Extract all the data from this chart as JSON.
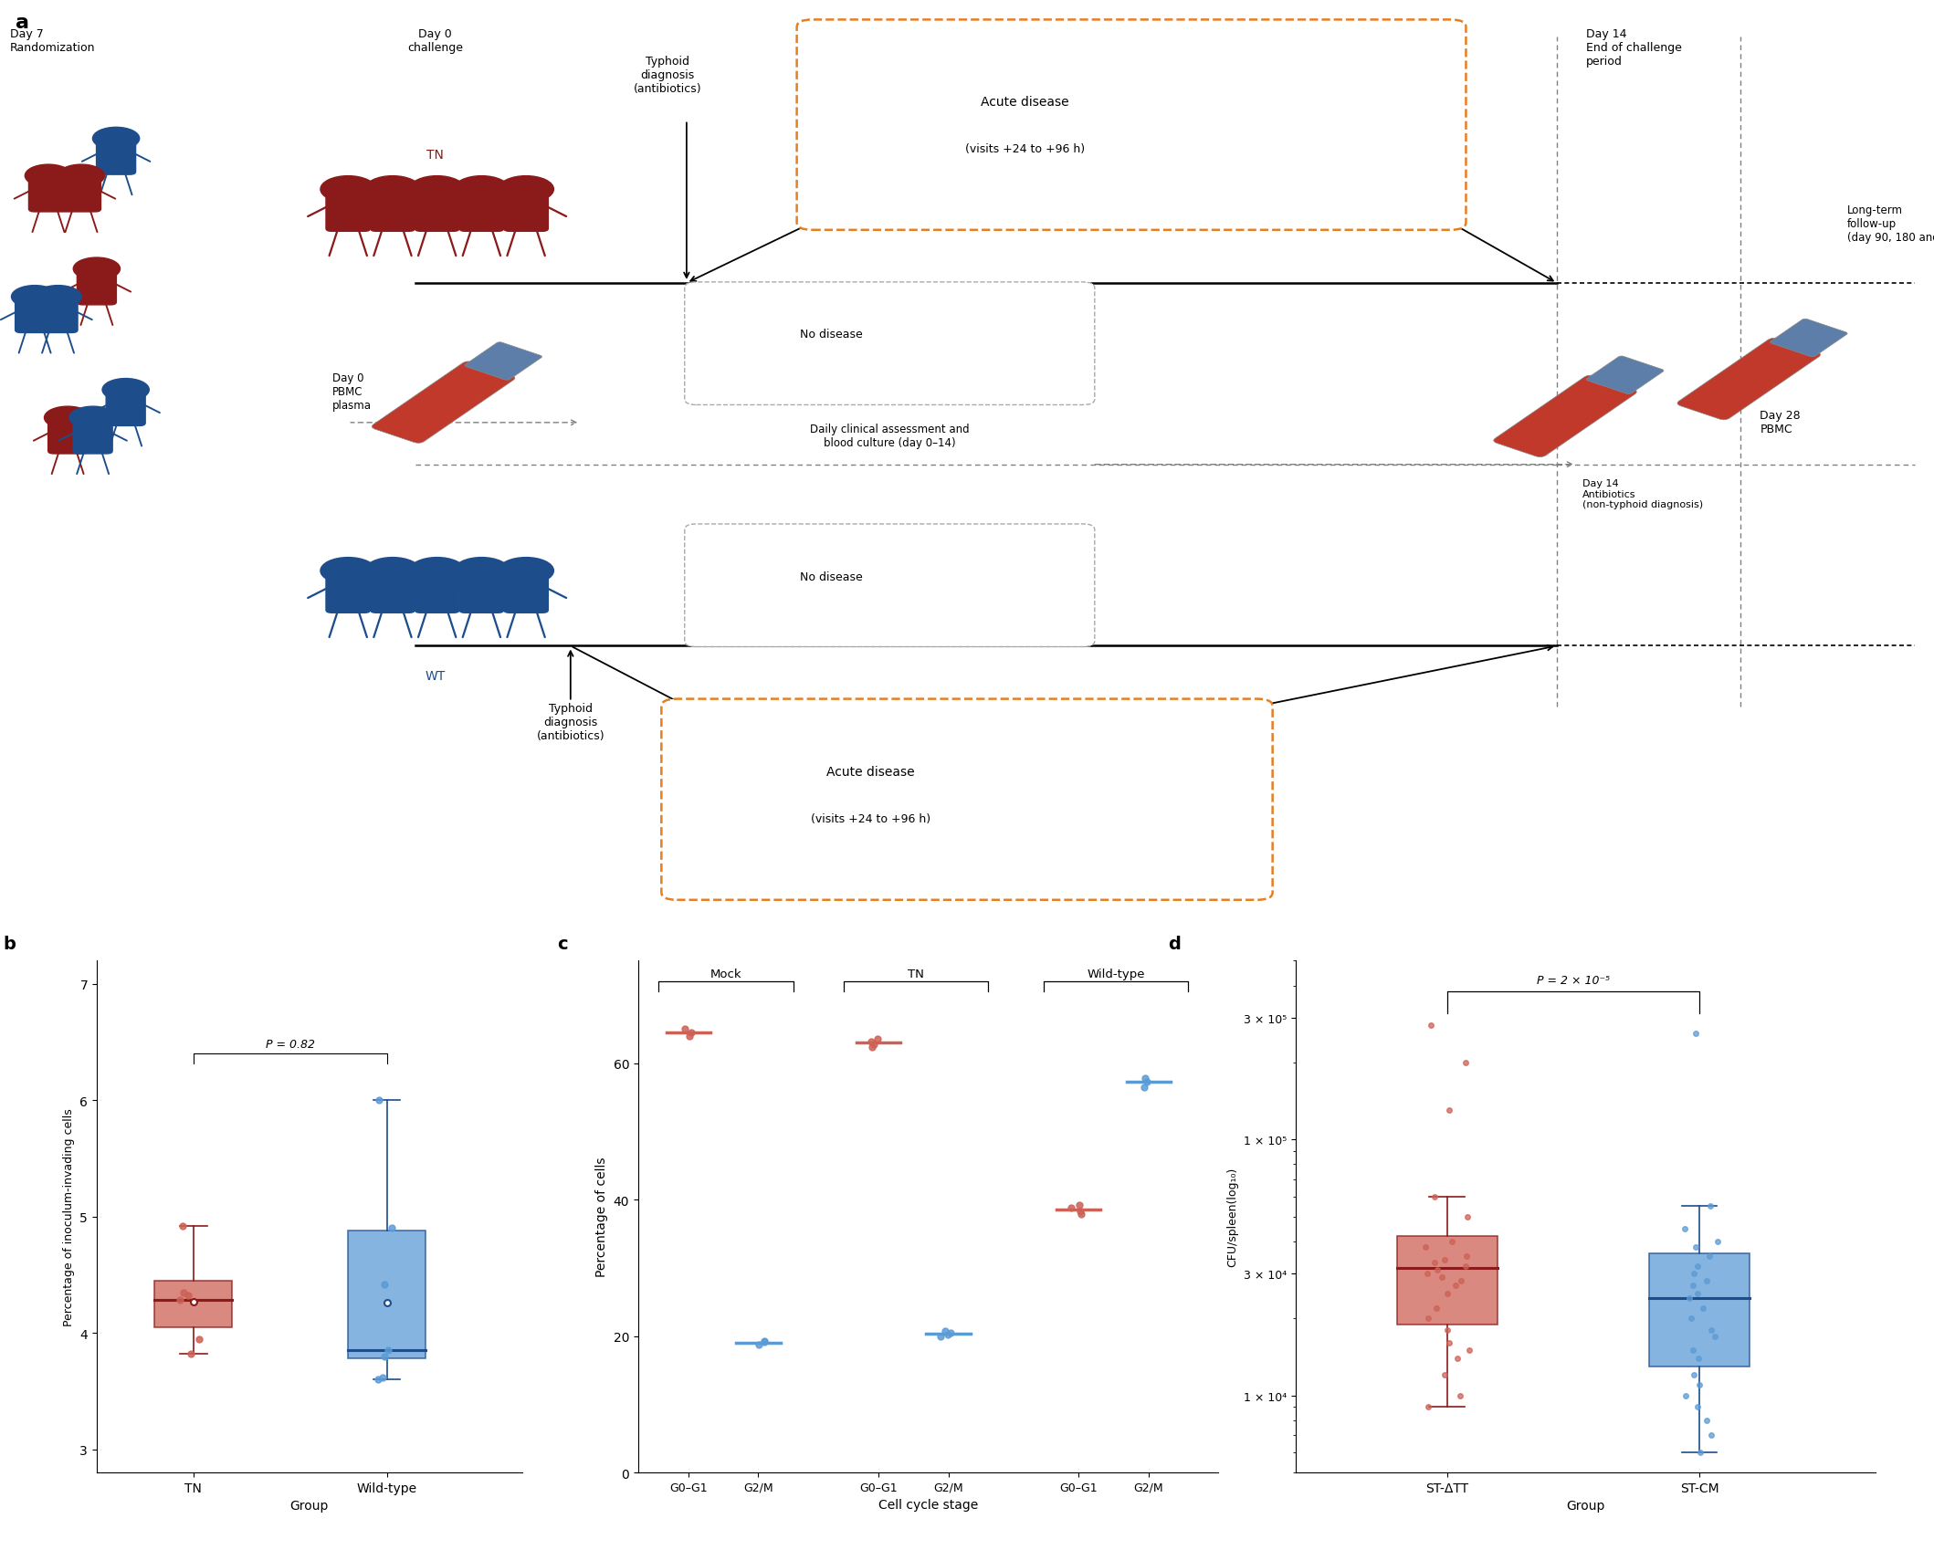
{
  "fig_width": 21.18,
  "fig_height": 16.99,
  "bg_color": "#ffffff",
  "panel_a_label": "a",
  "panel_b_label": "b",
  "panel_c_label": "c",
  "panel_d_label": "d",
  "red_color": "#8b1a1a",
  "blue_color": "#1e4d8c",
  "red_fill": "#cd6155",
  "blue_fill": "#5b9bd5",
  "orange_box": "#e67e22",
  "b_tn_q1": 4.05,
  "b_tn_q3": 4.45,
  "b_tn_median": 4.28,
  "b_tn_whisker_low": 3.82,
  "b_tn_whisker_high": 4.92,
  "b_tn_mean": 4.27,
  "b_tn_outliers": [],
  "b_tn_data": [
    3.82,
    3.95,
    4.28,
    4.32,
    4.35,
    4.92
  ],
  "b_wt_q1": 3.78,
  "b_wt_q3": 4.88,
  "b_wt_median": 3.85,
  "b_wt_whisker_low": 3.6,
  "b_wt_whisker_high": 6.0,
  "b_wt_mean": 4.26,
  "b_wt_outliers": [],
  "b_wt_data": [
    3.6,
    3.62,
    3.8,
    3.85,
    4.42,
    4.9,
    6.0
  ],
  "b_ylim": [
    2.8,
    7.2
  ],
  "b_yticks": [
    3,
    4,
    5,
    6,
    7
  ],
  "b_xlabel": "Group",
  "b_ylabel": "Percentage of inoculum-invading cells",
  "b_pvalue": "P = 0.82",
  "b_xticklabels": [
    "TN",
    "Wild-type"
  ],
  "c_mock_g01": [
    64.0,
    64.5,
    65.0
  ],
  "c_mock_g01_median": 64.5,
  "c_mock_g2m": [
    18.8,
    19.1,
    19.3
  ],
  "c_mock_g2m_median": 19.0,
  "c_tn_g01": [
    62.4,
    62.8,
    63.2,
    63.6
  ],
  "c_tn_g01_median": 63.0,
  "c_tn_g2m": [
    20.0,
    20.2,
    20.5,
    20.8
  ],
  "c_tn_g2m_median": 20.3,
  "c_wt_g01": [
    37.8,
    38.3,
    38.8,
    39.2
  ],
  "c_wt_g01_median": 38.5,
  "c_wt_g2m": [
    56.5,
    57.3,
    57.8
  ],
  "c_wt_g2m_median": 57.3,
  "c_ylim": [
    0,
    75
  ],
  "c_yticks": [
    0,
    20,
    40,
    60
  ],
  "c_xlabel": "Cell cycle stage",
  "c_ylabel": "Percentage of cells",
  "c_xticklabels": [
    "G0–G1",
    "G2/M",
    "G0–G1",
    "G2/M",
    "G0–G1",
    "G2/M"
  ],
  "c_group_labels": [
    "Mock",
    "TN",
    "Wild-type"
  ],
  "d_st_att_data": [
    9000,
    10000,
    12000,
    14000,
    15000,
    16000,
    18000,
    20000,
    22000,
    25000,
    27000,
    28000,
    29000,
    30000,
    31000,
    32000,
    33000,
    34000,
    35000,
    38000,
    40000,
    50000,
    60000,
    130000,
    200000,
    280000
  ],
  "d_st_cm_data": [
    6000,
    7000,
    8000,
    9000,
    10000,
    11000,
    12000,
    14000,
    15000,
    17000,
    18000,
    20000,
    22000,
    24000,
    25000,
    27000,
    28000,
    30000,
    32000,
    35000,
    38000,
    40000,
    45000,
    55000,
    260000
  ],
  "d_st_att_median": 31500,
  "d_st_att_q1": 19000,
  "d_st_att_q3": 42000,
  "d_st_att_whisker_low": 9000,
  "d_st_att_whisker_high": 60000,
  "d_st_cm_median": 24000,
  "d_st_cm_q1": 13000,
  "d_st_cm_q3": 36000,
  "d_st_cm_whisker_low": 6000,
  "d_st_cm_whisker_high": 55000,
  "d_ylabel": "CFU/spleen(log₁₀)",
  "d_xlabel": "Group",
  "d_pvalue": "P = 2 × 10⁻⁵",
  "d_xticklabels": [
    "ST-ΔTT",
    "ST-CM"
  ],
  "d_yticks": [
    10000,
    30000,
    100000,
    300000
  ],
  "d_ytick_labels": [
    "1 × 10⁴",
    "3 × 10⁴",
    "1 × 10⁵",
    "3 × 10⁵"
  ],
  "d_ylim": [
    5000,
    500000
  ]
}
